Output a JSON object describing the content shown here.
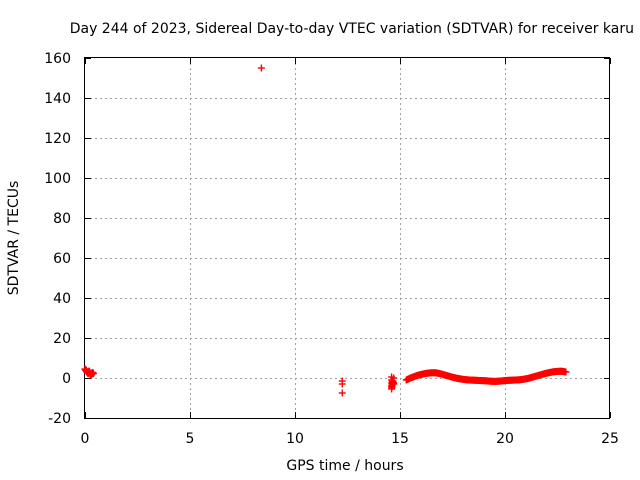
{
  "chart_data": {
    "type": "scatter",
    "title": "Day 244 of 2023, Sidereal Day-to-day VTEC variation (SDTVAR) for receiver karu",
    "xlabel": "GPS time / hours",
    "ylabel": "SDTVAR / TECUs",
    "xlim": [
      0,
      25
    ],
    "ylim": [
      -20,
      160
    ],
    "xticks": [
      "0",
      "5",
      "10",
      "15",
      "20",
      "25"
    ],
    "yticks": [
      "-20",
      "0",
      "20",
      "40",
      "60",
      "80",
      "100",
      "120",
      "140",
      "160"
    ],
    "grid": true,
    "marker": "+",
    "series_color": "#ff0000",
    "series": [
      {
        "name": "SDTVAR",
        "points": [
          [
            0.0,
            4.5
          ],
          [
            0.05,
            3.8
          ],
          [
            0.1,
            3.0
          ],
          [
            0.15,
            2.2
          ],
          [
            0.2,
            3.5
          ],
          [
            0.25,
            2.0
          ],
          [
            0.3,
            1.5
          ],
          [
            0.35,
            2.8
          ],
          [
            0.4,
            2.2
          ],
          [
            8.4,
            155
          ],
          [
            12.25,
            -1.5
          ],
          [
            12.25,
            -3.0
          ],
          [
            12.25,
            -7.5
          ],
          [
            14.6,
            0.5
          ],
          [
            14.6,
            -1.0
          ],
          [
            14.6,
            -2.5
          ],
          [
            14.6,
            -4.0
          ],
          [
            14.6,
            -5.5
          ],
          [
            14.65,
            -1.5
          ],
          [
            14.7,
            -3.0
          ],
          [
            14.7,
            0.0
          ],
          [
            15.3,
            -1.0
          ],
          [
            15.5,
            0.0
          ],
          [
            15.7,
            0.8
          ],
          [
            15.9,
            1.5
          ],
          [
            16.1,
            2.0
          ],
          [
            16.3,
            2.4
          ],
          [
            16.5,
            2.6
          ],
          [
            16.7,
            2.6
          ],
          [
            16.9,
            2.2
          ],
          [
            17.1,
            1.6
          ],
          [
            17.3,
            1.0
          ],
          [
            17.5,
            0.4
          ],
          [
            17.7,
            -0.1
          ],
          [
            17.9,
            -0.5
          ],
          [
            18.1,
            -0.8
          ],
          [
            18.3,
            -1.0
          ],
          [
            18.5,
            -1.1
          ],
          [
            18.7,
            -1.2
          ],
          [
            18.9,
            -1.3
          ],
          [
            19.1,
            -1.4
          ],
          [
            19.3,
            -1.6
          ],
          [
            19.5,
            -1.7
          ],
          [
            19.7,
            -1.6
          ],
          [
            19.9,
            -1.4
          ],
          [
            20.1,
            -1.2
          ],
          [
            20.3,
            -1.1
          ],
          [
            20.5,
            -1.0
          ],
          [
            20.7,
            -0.9
          ],
          [
            20.9,
            -0.6
          ],
          [
            21.1,
            -0.2
          ],
          [
            21.3,
            0.4
          ],
          [
            21.5,
            1.0
          ],
          [
            21.7,
            1.6
          ],
          [
            21.9,
            2.2
          ],
          [
            22.1,
            2.7
          ],
          [
            22.3,
            3.1
          ],
          [
            22.5,
            3.3
          ],
          [
            22.7,
            3.4
          ],
          [
            22.9,
            3.0
          ]
        ]
      }
    ]
  }
}
